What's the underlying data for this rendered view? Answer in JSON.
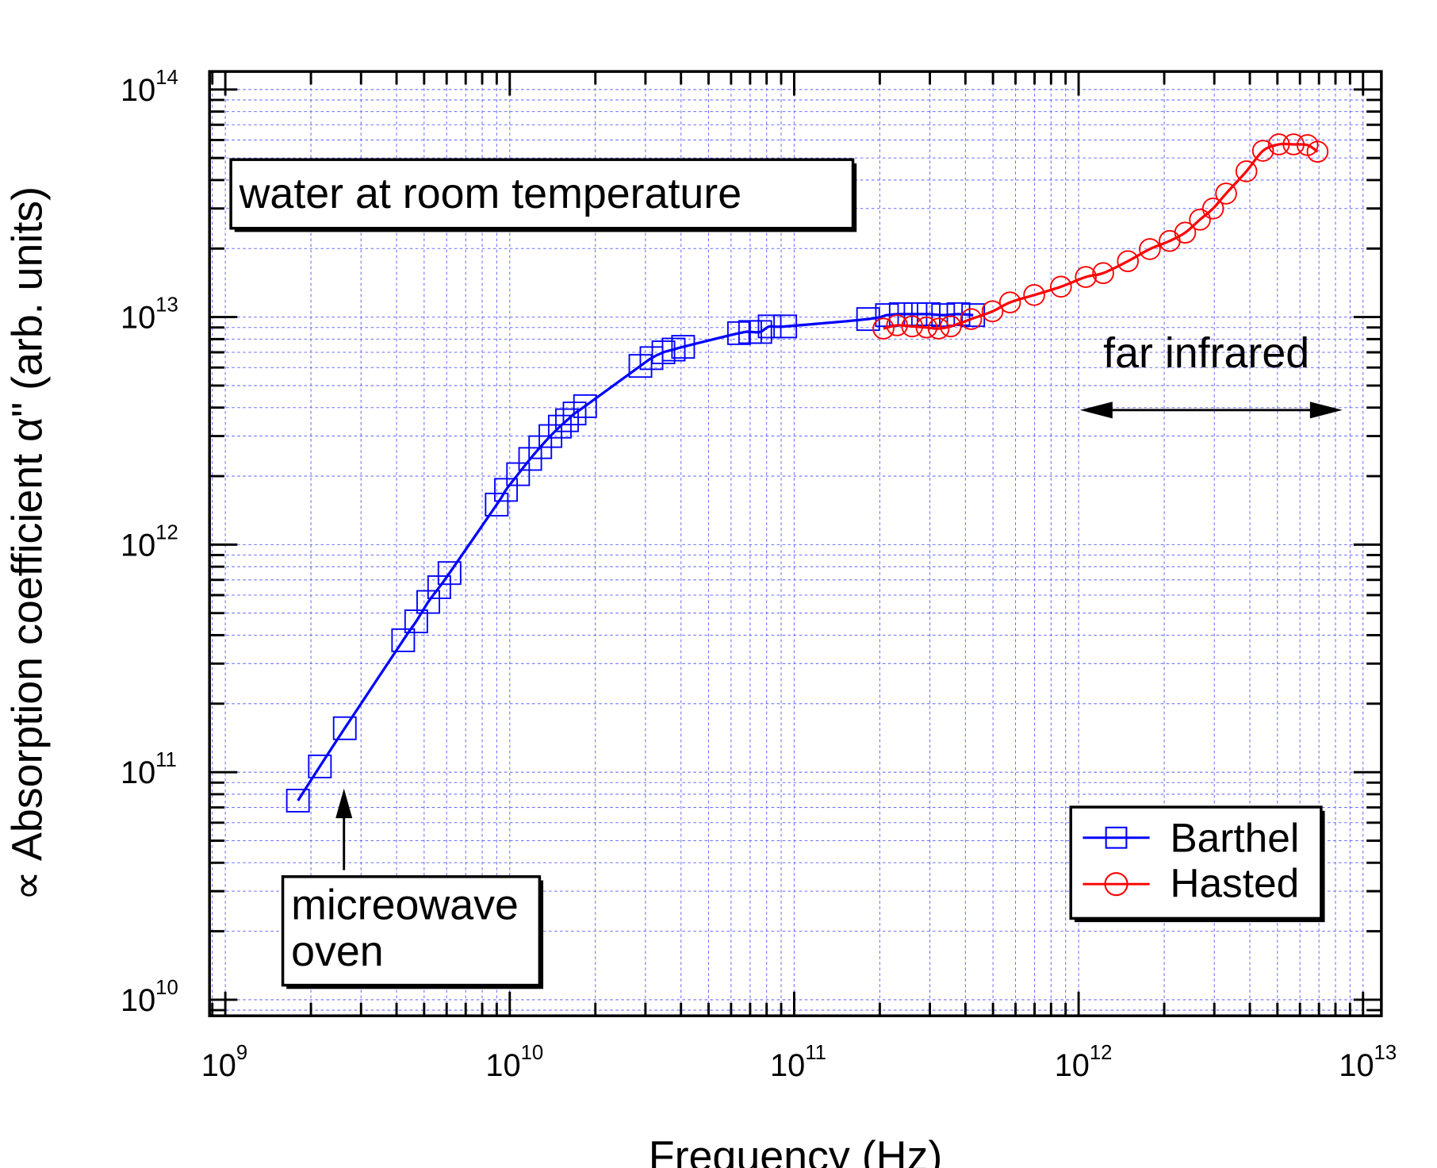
{
  "chart_data": {
    "type": "scatter",
    "title": "",
    "xlabel": "Frequency (Hz)",
    "ylabel": "∝ Absorption coefficient α\" (arb. units)",
    "xscale": "log",
    "yscale": "log",
    "xlim": [
      880000000.0,
      11600000000000.0
    ],
    "ylim": [
      8500000000.0,
      120000000000000.0
    ],
    "grid": true,
    "x_ticks": [
      {
        "value": 1000000000.0,
        "base": "10",
        "exp": "9"
      },
      {
        "value": 10000000000.0,
        "base": "10",
        "exp": "10"
      },
      {
        "value": 100000000000.0,
        "base": "10",
        "exp": "11"
      },
      {
        "value": 1000000000000.0,
        "base": "10",
        "exp": "12"
      },
      {
        "value": 10000000000000.0,
        "base": "10",
        "exp": "13"
      }
    ],
    "y_ticks": [
      {
        "value": 10000000000.0,
        "base": "10",
        "exp": "10"
      },
      {
        "value": 100000000000.0,
        "base": "10",
        "exp": "11"
      },
      {
        "value": 1000000000000.0,
        "base": "10",
        "exp": "12"
      },
      {
        "value": 10000000000000.0,
        "base": "10",
        "exp": "13"
      },
      {
        "value": 100000000000000.0,
        "base": "10",
        "exp": "14"
      }
    ],
    "legend": {
      "placement": "bottom-right"
    },
    "series": [
      {
        "name": "Barthel",
        "color": "#0000ff",
        "marker": "square",
        "x": [
          1800000000.0,
          2150000000.0,
          2630000000.0,
          4220000000.0,
          4690000000.0,
          5170000000.0,
          5650000000.0,
          6140000000.0,
          9000000000.0,
          9700000000.0,
          10700000000.0,
          11800000000.0,
          12800000000.0,
          13900000000.0,
          15000000000.0,
          15900000000.0,
          16900000000.0,
          18400000000.0,
          28800000000.0,
          31500000000.0,
          34700000000.0,
          37700000000.0,
          40700000000.0,
          64000000000.0,
          70000000000.0,
          76000000000.0,
          82000000000.0,
          93000000000.0,
          182000000000.0,
          212000000000.0,
          237000000000.0,
          267000000000.0,
          297000000000.0,
          334000000000.0,
          378000000000.0,
          426000000000.0
        ],
        "y": [
          75000000000.0,
          106000000000.0,
          156000000000.0,
          380000000000.0,
          460000000000.0,
          560000000000.0,
          650000000000.0,
          750000000000.0,
          1500000000000.0,
          1740000000000.0,
          2040000000000.0,
          2380000000000.0,
          2680000000000.0,
          3000000000000.0,
          3300000000000.0,
          3520000000000.0,
          3770000000000.0,
          4060000000000.0,
          6100000000000.0,
          6600000000000.0,
          7000000000000.0,
          7200000000000.0,
          7400000000000.0,
          8500000000000.0,
          8600000000000.0,
          8600000000000.0,
          9100000000000.0,
          9100000000000.0,
          9800000000000.0,
          10200000000000.0,
          10300000000000.0,
          10300000000000.0,
          10300000000000.0,
          10200000000000.0,
          10300000000000.0,
          10200000000000.0
        ]
      },
      {
        "name": "Hasted",
        "color": "#ff0000",
        "marker": "circle",
        "x": [
          206000000000.0,
          230000000000.0,
          260000000000.0,
          292000000000.0,
          322000000000.0,
          355000000000.0,
          419000000000.0,
          498000000000.0,
          574000000000.0,
          698000000000.0,
          867000000000.0,
          1060000000000.0,
          1220000000000.0,
          1490000000000.0,
          1780000000000.0,
          2090000000000.0,
          2370000000000.0,
          2670000000000.0,
          2970000000000.0,
          3300000000000.0,
          3890000000000.0,
          4450000000000.0,
          5060000000000.0,
          5700000000000.0,
          6380000000000.0,
          6920000000000.0
        ],
        "y": [
          8900000000000.0,
          9200000000000.0,
          9100000000000.0,
          9000000000000.0,
          8900000000000.0,
          9100000000000.0,
          9800000000000.0,
          10600000000000.0,
          11600000000000.0,
          12500000000000.0,
          13600000000000.0,
          15000000000000.0,
          15600000000000.0,
          17600000000000.0,
          19900000000000.0,
          21600000000000.0,
          23500000000000.0,
          26800000000000.0,
          30000000000000.0,
          34900000000000.0,
          43700000000000.0,
          53800000000000.0,
          57400000000000.0,
          57400000000000.0,
          57000000000000.0,
          53300000000000.0
        ]
      }
    ],
    "annotations": {
      "title_box": "water at room temperature",
      "microwave_line1": "micreowave",
      "microwave_line2": "oven",
      "far_infrared": "far infrared"
    }
  }
}
